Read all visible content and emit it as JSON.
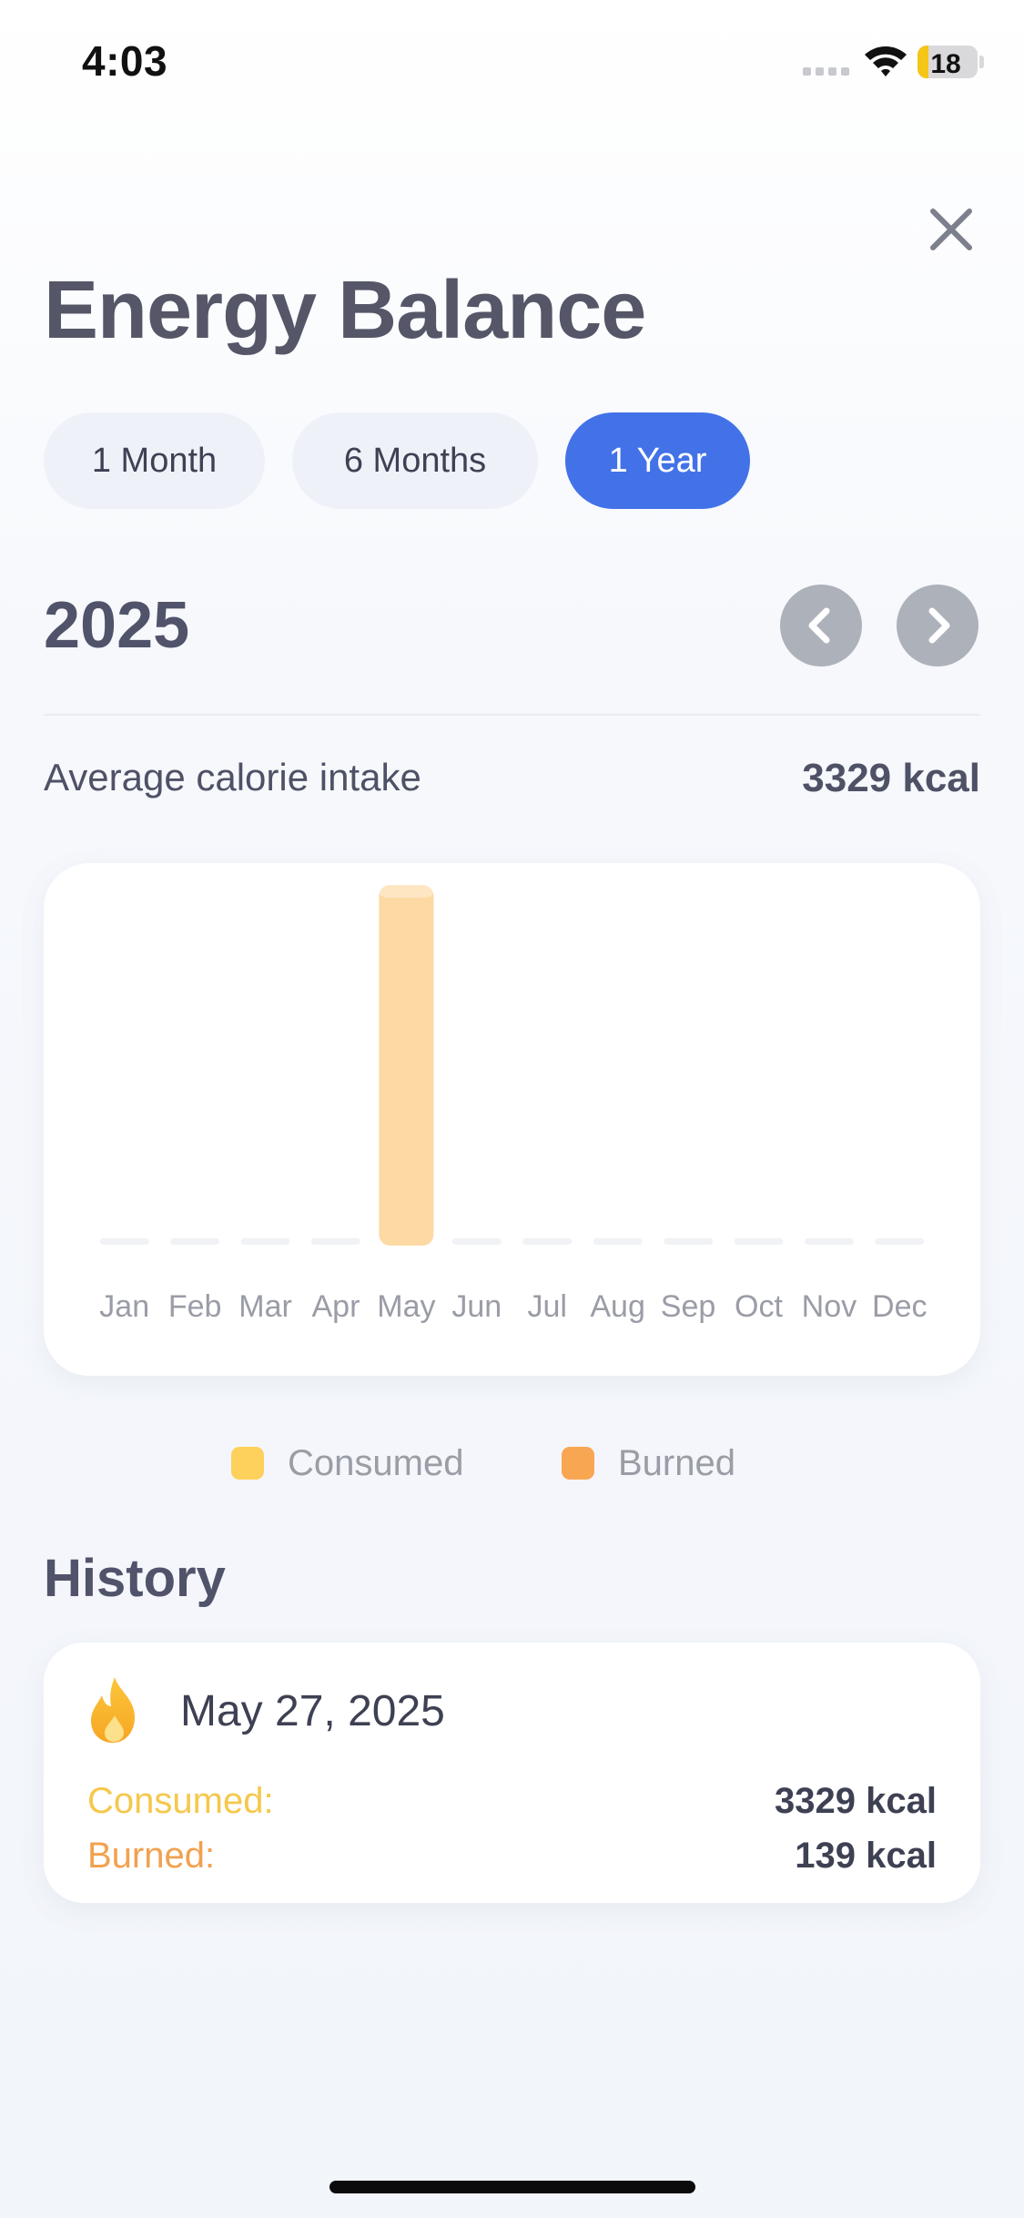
{
  "status_bar": {
    "time": "4:03",
    "battery": "18",
    "battery_level": 0.18,
    "icons": [
      "cellular-signal-icon",
      "wifi-icon",
      "battery-icon"
    ]
  },
  "header": {
    "title": "Energy Balance",
    "close_icon": "close-icon"
  },
  "range_tabs": [
    {
      "label": "1 Month",
      "selected": false
    },
    {
      "label": "6 Months",
      "selected": false
    },
    {
      "label": "1 Year",
      "selected": true
    }
  ],
  "period": {
    "label": "2025",
    "prev_icon": "chevron-left-icon",
    "next_icon": "chevron-right-icon"
  },
  "summary": {
    "label": "Average calorie intake",
    "value": "3329 kcal"
  },
  "chart_data": {
    "type": "bar",
    "categories": [
      "Jan",
      "Feb",
      "Mar",
      "Apr",
      "May",
      "Jun",
      "Jul",
      "Aug",
      "Sep",
      "Oct",
      "Nov",
      "Dec"
    ],
    "series": [
      {
        "name": "Consumed",
        "values": [
          0,
          0,
          0,
          0,
          3329,
          0,
          0,
          0,
          0,
          0,
          0,
          0
        ]
      },
      {
        "name": "Burned",
        "values": [
          0,
          0,
          0,
          0,
          139,
          0,
          0,
          0,
          0,
          0,
          0,
          0
        ]
      }
    ],
    "ylim": [
      0,
      3329
    ],
    "grid": false,
    "legend_position": "bottom"
  },
  "legend": [
    {
      "label": "Consumed",
      "color": "#fdd15b"
    },
    {
      "label": "Burned",
      "color": "#f9a653"
    }
  ],
  "colors": {
    "accent": "#4372e8",
    "consumed": "#f5c84c",
    "burned": "#f2a14f",
    "bar": "#fdd9a3"
  },
  "history": {
    "title": "History",
    "entries": [
      {
        "icon": "flame-icon",
        "date": "May 27, 2025",
        "consumed_label": "Consumed:",
        "consumed_value": "3329 kcal",
        "burned_label": "Burned:",
        "burned_value": "139 kcal"
      }
    ]
  }
}
